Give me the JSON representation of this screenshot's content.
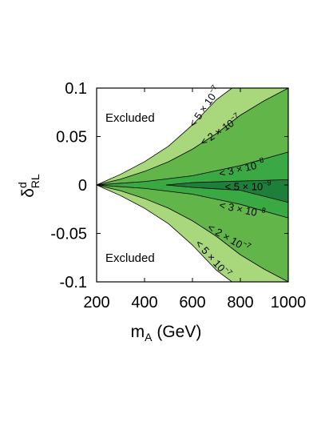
{
  "chart_data": {
    "type": "area",
    "title": "",
    "xlabel": {
      "main": "m",
      "sub": "A",
      "rest": " (GeV)"
    },
    "ylabel": {
      "main": "δ",
      "sup": "d",
      "sub": "RL"
    },
    "xlim": [
      200,
      1000
    ],
    "ylim": [
      -0.1,
      0.1
    ],
    "x_ticks": [
      "200",
      "400",
      "600",
      "800",
      "1000"
    ],
    "y_ticks": [
      "0.1",
      "0.05",
      "0",
      "-0.05",
      "-0.1"
    ],
    "grid": false,
    "region_labels": {
      "upper": "Excluded",
      "lower": "Excluded"
    },
    "colors": {
      "excluded": "#ffffff",
      "band_5e7": "#a9d77c",
      "band_2e7": "#62b548",
      "band_3e8": "#3aa843",
      "band_5e9": "#1e7f3c",
      "boundary": "#000000"
    },
    "contours": [
      {
        "name": "< 5 × 10⁻⁷",
        "label_upper": "< 5 × 10",
        "label_lower": "< 5 × 10",
        "exponent": "−7",
        "upper": [
          [
            200,
            0.0
          ],
          [
            300,
            0.011
          ],
          [
            400,
            0.024
          ],
          [
            500,
            0.04
          ],
          [
            600,
            0.062
          ],
          [
            700,
            0.088
          ],
          [
            765,
            0.1
          ]
        ],
        "lower": [
          [
            200,
            0.0
          ],
          [
            300,
            -0.011
          ],
          [
            400,
            -0.024
          ],
          [
            500,
            -0.04
          ],
          [
            600,
            -0.062
          ],
          [
            700,
            -0.088
          ],
          [
            765,
            -0.1
          ]
        ]
      },
      {
        "name": "< 2 × 10⁻⁷",
        "label_upper": "< 2 × 10",
        "label_lower": "< 2 × 10",
        "exponent": "−7",
        "upper": [
          [
            200,
            0.0
          ],
          [
            300,
            0.006
          ],
          [
            400,
            0.014
          ],
          [
            500,
            0.024
          ],
          [
            600,
            0.037
          ],
          [
            700,
            0.053
          ],
          [
            800,
            0.072
          ],
          [
            900,
            0.087
          ],
          [
            1000,
            0.1
          ]
        ],
        "lower": [
          [
            200,
            0.0
          ],
          [
            300,
            -0.006
          ],
          [
            400,
            -0.014
          ],
          [
            500,
            -0.024
          ],
          [
            600,
            -0.037
          ],
          [
            700,
            -0.053
          ],
          [
            800,
            -0.072
          ],
          [
            900,
            -0.087
          ],
          [
            1000,
            -0.1
          ]
        ]
      },
      {
        "name": "< 3 × 10⁻⁸",
        "label_upper": "< 3 × 10",
        "label_lower": "< 3 × 10",
        "exponent": "−8",
        "upper": [
          [
            200,
            0.0
          ],
          [
            400,
            0.0035
          ],
          [
            600,
            0.0095
          ],
          [
            800,
            0.02
          ],
          [
            1000,
            0.034
          ]
        ],
        "lower": [
          [
            200,
            0.0
          ],
          [
            400,
            -0.0035
          ],
          [
            600,
            -0.0095
          ],
          [
            800,
            -0.02
          ],
          [
            1000,
            -0.034
          ]
        ]
      },
      {
        "name": "< 5 × 10⁻⁹",
        "label": "< 5 × 10",
        "exponent": "−9",
        "upper": [
          [
            490,
            0.0
          ],
          [
            600,
            0.0025
          ],
          [
            800,
            0.004
          ],
          [
            1000,
            0.0055
          ]
        ],
        "lower": [
          [
            490,
            0.0
          ],
          [
            600,
            -0.0025
          ],
          [
            800,
            -0.0055
          ],
          [
            1000,
            -0.018
          ]
        ]
      }
    ]
  }
}
